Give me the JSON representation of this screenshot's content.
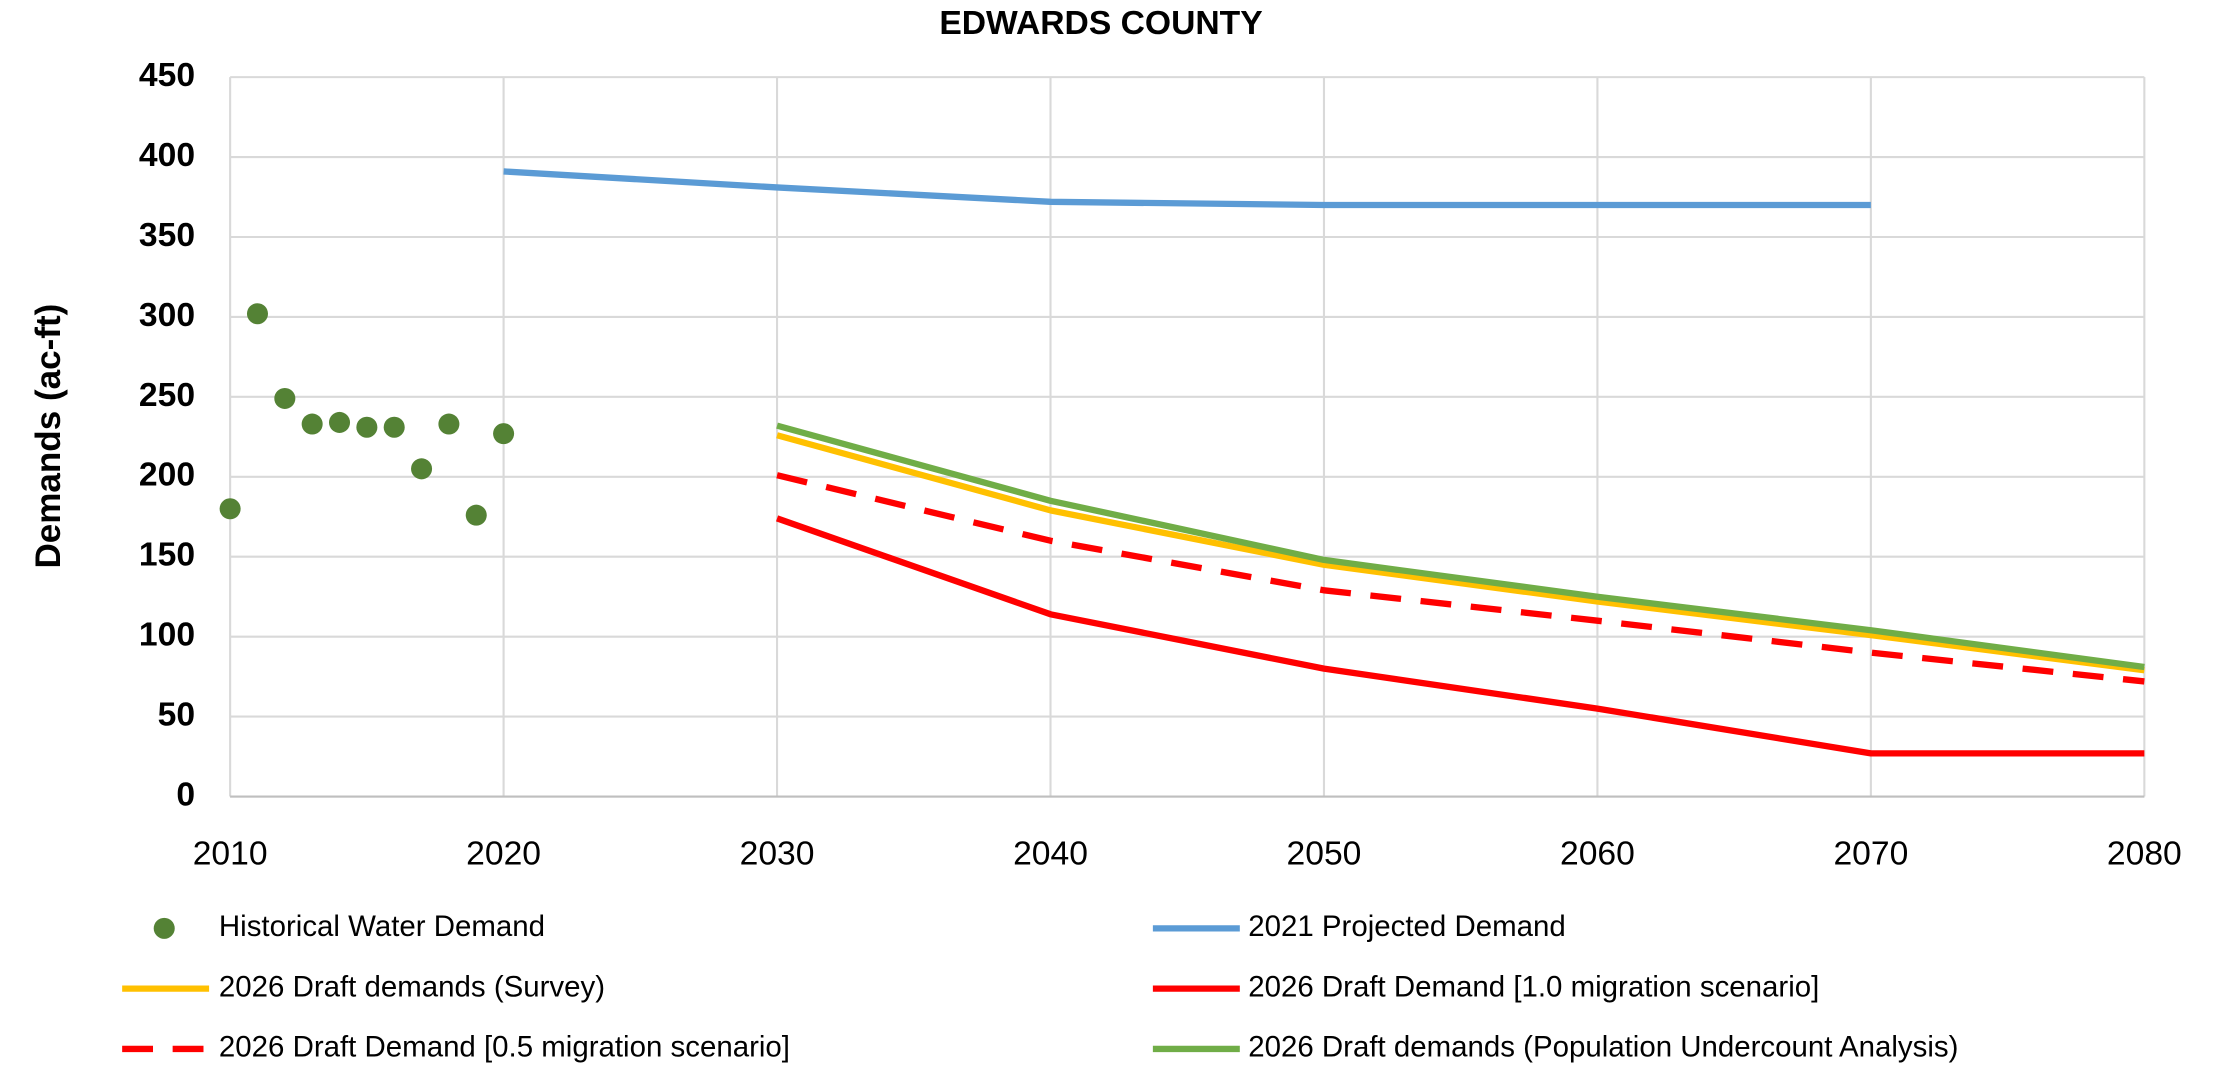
{
  "chart_data": {
    "type": "line",
    "title": "EDWARDS COUNTY",
    "y_label": "Demands (ac-ft)",
    "xlim": [
      2010,
      2080
    ],
    "xticks": [
      2010,
      2020,
      2030,
      2040,
      2050,
      2060,
      2070,
      2080
    ],
    "ylim": [
      0,
      450
    ],
    "yticks": [
      0,
      50,
      100,
      150,
      200,
      250,
      300,
      350,
      400,
      450
    ],
    "grid": true,
    "series": [
      {
        "name": "Historical Water Demand",
        "type": "scatter",
        "color": "#548235",
        "x": [
          2010,
          2011,
          2012,
          2013,
          2014,
          2015,
          2016,
          2017,
          2018,
          2019,
          2020
        ],
        "values": [
          180,
          302,
          249,
          233,
          234,
          231,
          231,
          205,
          233,
          176,
          227
        ]
      },
      {
        "name": "2021 Projected Demand",
        "type": "line",
        "color": "#5b9bd5",
        "x": [
          2020,
          2030,
          2040,
          2050,
          2060,
          2070
        ],
        "values": [
          391,
          381,
          372,
          370,
          370,
          370
        ]
      },
      {
        "name": "2026 Draft demands (Survey)",
        "type": "line",
        "color": "#ffc000",
        "x": [
          2030,
          2040,
          2050,
          2060,
          2070,
          2080
        ],
        "values": [
          226,
          179,
          145,
          122,
          101,
          79
        ]
      },
      {
        "name": "2026 Draft Demand [1.0 migration scenario]",
        "type": "line",
        "color": "#ff0000",
        "x": [
          2030,
          2040,
          2050,
          2060,
          2070,
          2080
        ],
        "values": [
          174,
          114,
          80,
          55,
          27,
          27
        ]
      },
      {
        "name": "2026 Draft Demand [0.5 migration scenario]",
        "type": "line",
        "color": "#ff0000",
        "dashed": true,
        "x": [
          2030,
          2040,
          2050,
          2060,
          2070,
          2080
        ],
        "values": [
          201,
          160,
          129,
          110,
          90,
          72
        ]
      },
      {
        "name": "2026 Draft demands (Population Undercount Analysis)",
        "type": "line",
        "color": "#70ad47",
        "x": [
          2030,
          2040,
          2050,
          2060,
          2070,
          2080
        ],
        "values": [
          232,
          185,
          148,
          125,
          104,
          81
        ]
      }
    ]
  }
}
